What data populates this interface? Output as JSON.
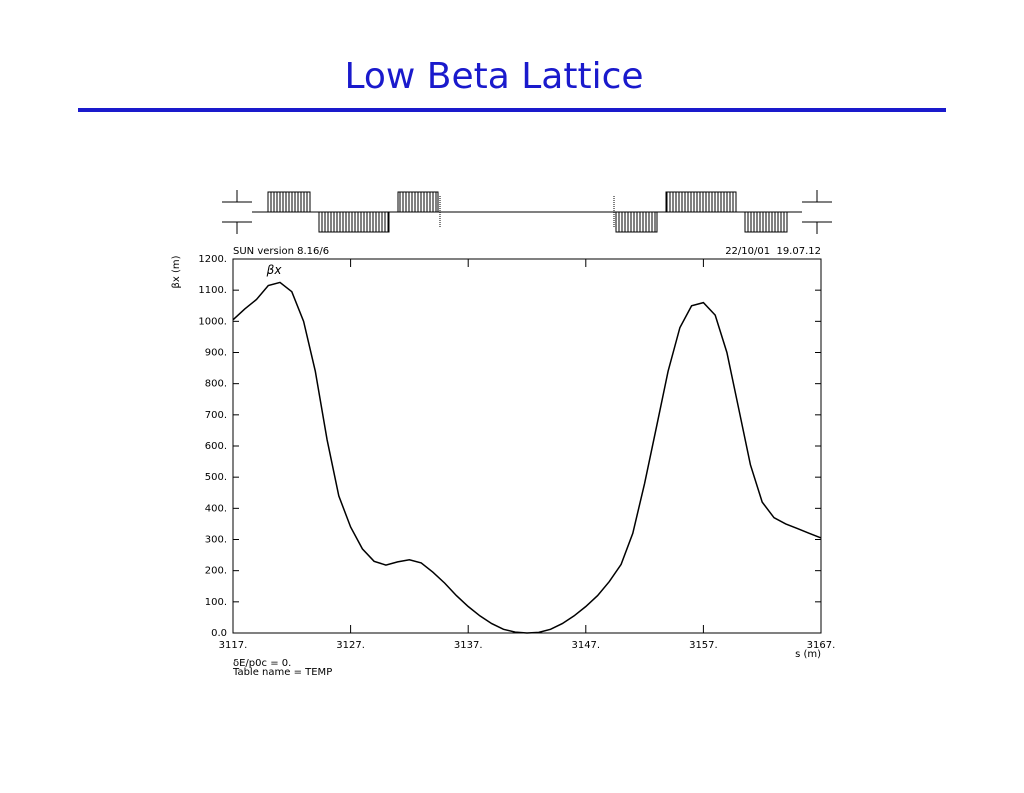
{
  "chart_data": {
    "type": "line",
    "title": "Low Beta Lattice",
    "header_left": "SUN version 8.16/6",
    "header_right": "22/10/01  19.07.12",
    "ylabel": "βx (m)",
    "xlabel": "s (m)",
    "footer": [
      "δE/p0c = 0.",
      "Table name = TEMP"
    ],
    "x": [
      3117,
      3118,
      3119,
      3120,
      3121,
      3122,
      3123,
      3124,
      3125,
      3126,
      3127,
      3128,
      3129,
      3130,
      3131,
      3132,
      3133,
      3134,
      3135,
      3136,
      3137,
      3138,
      3139,
      3140,
      3141,
      3142,
      3143,
      3144,
      3145,
      3146,
      3147,
      3148,
      3149,
      3150,
      3151,
      3152,
      3153,
      3154,
      3155,
      3156,
      3157,
      3158,
      3159,
      3160,
      3161,
      3162,
      3163,
      3164,
      3165,
      3166,
      3167
    ],
    "series": [
      {
        "name": "βx",
        "color": "#000000",
        "values": [
          1005,
          1040,
          1070,
          1115,
          1125,
          1095,
          1000,
          840,
          620,
          440,
          340,
          270,
          230,
          218,
          228,
          235,
          225,
          195,
          160,
          120,
          85,
          55,
          30,
          12,
          3,
          0,
          2,
          12,
          30,
          55,
          85,
          120,
          165,
          220,
          320,
          480,
          660,
          840,
          980,
          1050,
          1060,
          1020,
          900,
          720,
          540,
          420,
          370,
          350,
          335,
          320,
          305
        ]
      }
    ],
    "xlim": [
      3117,
      3167
    ],
    "ylim": [
      0,
      1200
    ],
    "xticks": [
      {
        "value": 3117,
        "label": "3117."
      },
      {
        "value": 3127,
        "label": "3127."
      },
      {
        "value": 3137,
        "label": "3137."
      },
      {
        "value": 3147,
        "label": "3147."
      },
      {
        "value": 3157,
        "label": "3157."
      },
      {
        "value": 3167,
        "label": "3167."
      }
    ],
    "yticks": [
      {
        "value": 0,
        "label": "0.0"
      },
      {
        "value": 100,
        "label": "100."
      },
      {
        "value": 200,
        "label": "200."
      },
      {
        "value": 300,
        "label": "300."
      },
      {
        "value": 400,
        "label": "400."
      },
      {
        "value": 500,
        "label": "500."
      },
      {
        "value": 600,
        "label": "600."
      },
      {
        "value": 700,
        "label": "700."
      },
      {
        "value": 800,
        "label": "800."
      },
      {
        "value": 900,
        "label": "900."
      },
      {
        "value": 1000,
        "label": "1000."
      },
      {
        "value": 1100,
        "label": "1100."
      },
      {
        "value": 1200,
        "label": "1200."
      }
    ]
  }
}
